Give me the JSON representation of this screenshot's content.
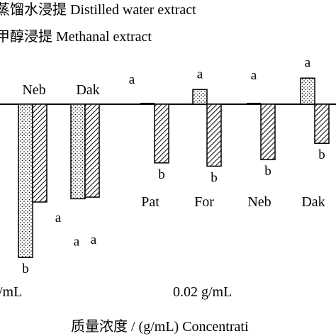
{
  "chart_data": {
    "type": "bar",
    "baseline": 0,
    "ylim": [
      -100,
      40
    ],
    "legend": [
      {
        "name": "蒸馏水浸提 Distilled water extract",
        "pattern": "dots"
      },
      {
        "name": "甲醇浸提 Methanal extract",
        "pattern": "hatch"
      }
    ],
    "groups": [
      {
        "concentration": "/mL",
        "categories": [
          "Neb",
          "Dak"
        ]
      },
      {
        "concentration": "0.02 g/mL",
        "categories": [
          "Pat",
          "For",
          "Neb",
          "Dak"
        ]
      }
    ],
    "series": [
      {
        "name": "蒸馏水浸提 Distilled water extract",
        "pattern": "dots",
        "values": [
          -94,
          -58,
          0,
          9,
          -1.5,
          16
        ],
        "labels": [
          "b",
          "a",
          "a",
          "a",
          "a",
          "a"
        ]
      },
      {
        "name": "甲醇浸提 Methanal extract",
        "pattern": "hatch",
        "values": [
          -60,
          -57,
          -36,
          -38,
          -34,
          -24
        ],
        "labels": [
          "a",
          "a",
          "b",
          "b",
          "b",
          "b"
        ]
      }
    ],
    "category_labels": [
      "Neb",
      "Dak",
      "Pat",
      "For",
      "Neb",
      "Dak"
    ],
    "group_labels": [
      "/mL",
      "0.02 g/mL"
    ],
    "xlabel": "质量浓度 / (g/mL)   Concentrati"
  },
  "colors": {
    "ink": "#000000",
    "background": "#ffffff"
  }
}
